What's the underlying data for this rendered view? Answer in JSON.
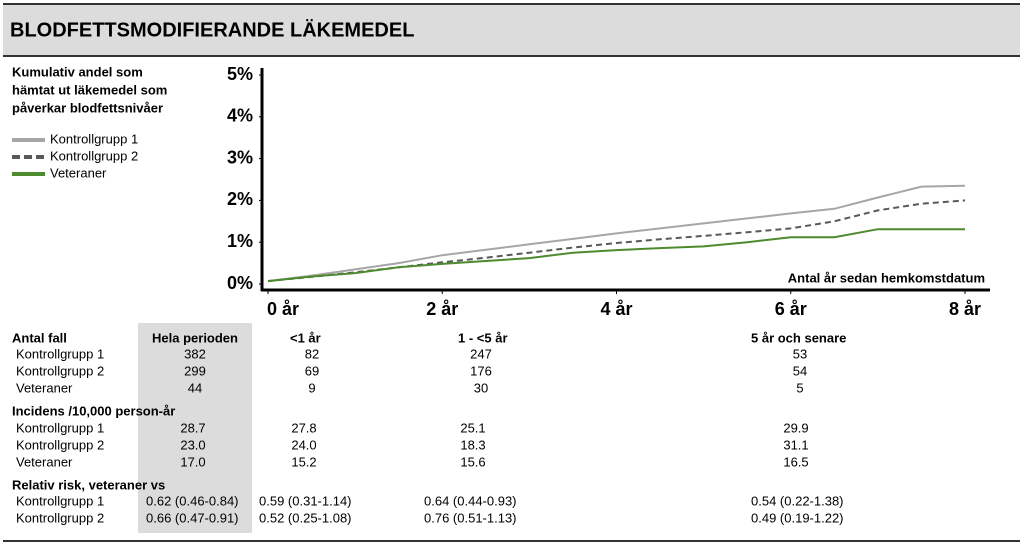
{
  "title": "BLODFETTSMODIFIERANDE LÄKEMEDEL",
  "chart_data": {
    "type": "line",
    "ylabel": [
      "Kumulativ andel som",
      "hämtat ut läkemedel som",
      "påverkar blodfettsnivåer"
    ],
    "xlabel": "Antal år sedan hemkomstdatum",
    "x": [
      0,
      0.5,
      1,
      1.5,
      2,
      2.5,
      3,
      3.5,
      4,
      4.5,
      5,
      5.5,
      6,
      6.5,
      7,
      7.5,
      8
    ],
    "series": [
      {
        "name": "Kontrollgrupp 1",
        "color": "#a6a6a6",
        "style": "solid",
        "values": [
          0.07,
          0.2,
          0.35,
          0.5,
          0.69,
          0.82,
          0.95,
          1.08,
          1.21,
          1.33,
          1.45,
          1.57,
          1.69,
          1.8,
          2.07,
          2.33,
          2.35
        ]
      },
      {
        "name": "Kontrollgrupp 2",
        "color": "#595959",
        "style": "dashed",
        "values": [
          0.07,
          0.17,
          0.28,
          0.4,
          0.52,
          0.63,
          0.75,
          0.87,
          0.98,
          1.07,
          1.15,
          1.24,
          1.33,
          1.5,
          1.76,
          1.92,
          2.0
        ]
      },
      {
        "name": "Veteraner",
        "color": "#4e8a2e",
        "style": "solid",
        "values": [
          0.07,
          0.18,
          0.26,
          0.4,
          0.48,
          0.55,
          0.62,
          0.75,
          0.81,
          0.86,
          0.9,
          1.0,
          1.12,
          1.12,
          1.31,
          1.31,
          1.31
        ]
      }
    ],
    "xlim": [
      0,
      8
    ],
    "xticks": [
      {
        "value": 0,
        "label": "0 år"
      },
      {
        "value": 2,
        "label": "2 år"
      },
      {
        "value": 4,
        "label": "4 år"
      },
      {
        "value": 6,
        "label": "6 år"
      },
      {
        "value": 8,
        "label": "8 år"
      }
    ],
    "ylim": [
      0,
      5
    ],
    "yticks": [
      {
        "value": 0,
        "label": "0%"
      },
      {
        "value": 1,
        "label": "1%"
      },
      {
        "value": 2,
        "label": "2%"
      },
      {
        "value": 3,
        "label": "3%"
      },
      {
        "value": 4,
        "label": "4%"
      },
      {
        "value": 5,
        "label": "5%"
      }
    ],
    "grid": false,
    "legend": "top-left"
  },
  "table": {
    "columns": [
      "Hela perioden",
      "<1 år",
      "1 - <5 år",
      "5 år och senare"
    ],
    "sections": [
      {
        "title": "Antal fall",
        "rows": [
          {
            "label": "Kontrollgrupp 1",
            "cells": [
              "382",
              "82",
              "247",
              "53"
            ]
          },
          {
            "label": "Kontrollgrupp 2",
            "cells": [
              "299",
              "69",
              "176",
              "54"
            ]
          },
          {
            "label": "Veteraner",
            "cells": [
              "44",
              "9",
              "30",
              "5"
            ]
          }
        ]
      },
      {
        "title": "Incidens /10,000 person-år",
        "rows": [
          {
            "label": "Kontrollgrupp 1",
            "cells": [
              "28.7",
              "27.8",
              "25.1",
              "29.9"
            ]
          },
          {
            "label": "Kontrollgrupp 2",
            "cells": [
              "23.0",
              "24.0",
              "18.3",
              "31.1"
            ]
          },
          {
            "label": "Veteraner",
            "cells": [
              "17.0",
              "15.2",
              "15.6",
              "16.5"
            ]
          }
        ]
      },
      {
        "title": "Relativ risk, veteraner vs",
        "rows": [
          {
            "label": "Kontrollgrupp 1",
            "cells": [
              "0.62 (0.46-0.84)",
              "0.59 (0.31-1.14)",
              "0.64 (0.44-0.93)",
              "0.54 (0.22-1.38)"
            ]
          },
          {
            "label": "Kontrollgrupp 2",
            "cells": [
              "0.66 (0.47-0.91)",
              "0.52 (0.25-1.08)",
              "0.76 (0.51-1.13)",
              "0.49 (0.19-1.22)"
            ]
          }
        ]
      }
    ]
  }
}
